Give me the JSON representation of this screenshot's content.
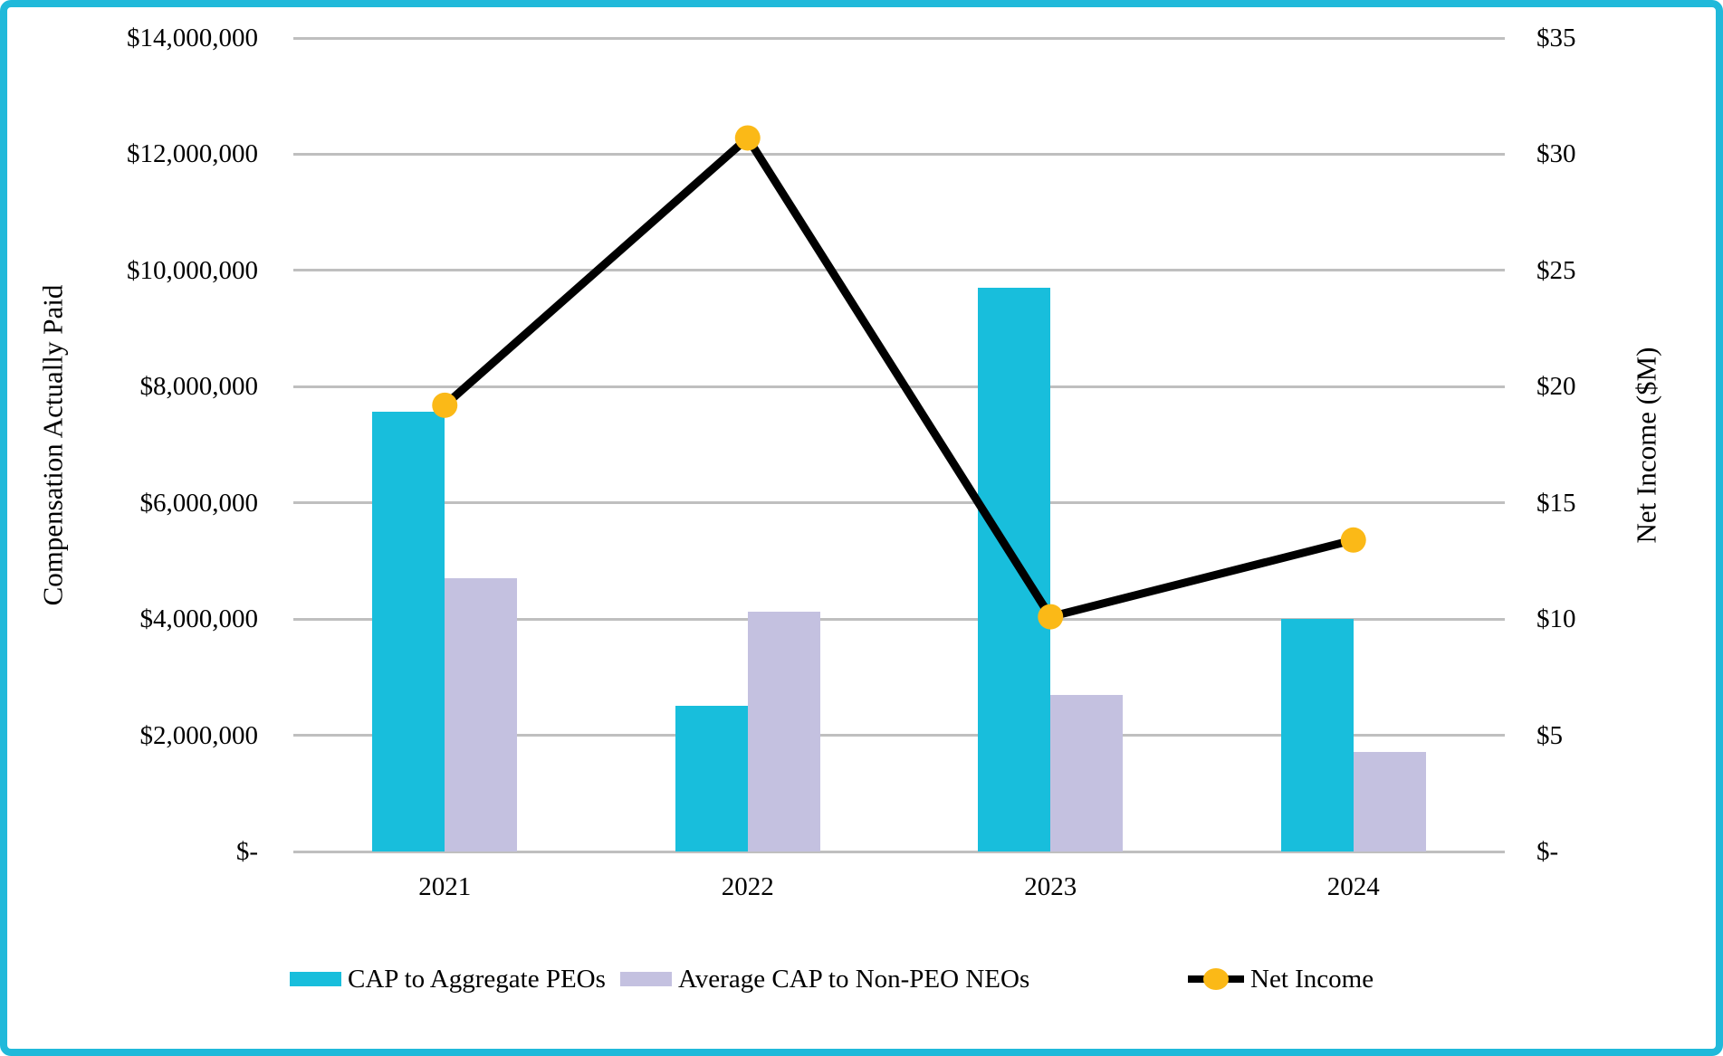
{
  "chart_data": {
    "type": "combo-bar-line",
    "categories": [
      "2021",
      "2022",
      "2023",
      "2024"
    ],
    "series": [
      {
        "name": "CAP to Aggregate PEOs",
        "type": "bar",
        "axis": "left",
        "color": "#18BEDC",
        "values": [
          7570000,
          2500000,
          9700000,
          4000000
        ]
      },
      {
        "name": "Average CAP to Non-PEO NEOs",
        "type": "bar",
        "axis": "left",
        "color": "#C4C1E0",
        "values": [
          4700000,
          4130000,
          2690000,
          1710000
        ]
      },
      {
        "name": "Net Income",
        "type": "line",
        "axis": "right",
        "line_color": "#000000",
        "marker_color": "#FBB917",
        "values": [
          19.2,
          30.7,
          10.1,
          13.4
        ]
      }
    ],
    "left_axis": {
      "title": "Compensation Actually Paid",
      "min": 0,
      "max": 14000000,
      "tick_step": 2000000,
      "tick_labels_top_to_bottom": [
        "$14,000,000",
        "$12,000,000",
        "$10,000,000",
        "$8,000,000",
        "$6,000,000",
        "$4,000,000",
        "$2,000,000",
        "$-"
      ]
    },
    "right_axis": {
      "title": "Net Income ($M)",
      "min": 0,
      "max": 35,
      "tick_step": 5,
      "tick_labels_top_to_bottom": [
        "$35",
        "$30",
        "$25",
        "$20",
        "$15",
        "$10",
        "$5",
        "$-"
      ]
    },
    "x_axis": {
      "tick_labels": [
        "2021",
        "2022",
        "2023",
        "2024"
      ]
    },
    "grid": true,
    "legend": {
      "position": "bottom",
      "items": [
        "CAP to Aggregate PEOs",
        "Average CAP to Non-PEO NEOs",
        "Net Income"
      ]
    },
    "colors": {
      "frame_border": "#20B9DA",
      "gridline": "#BFBFBF",
      "background": "#FFFFFF",
      "text": "#000000"
    }
  }
}
